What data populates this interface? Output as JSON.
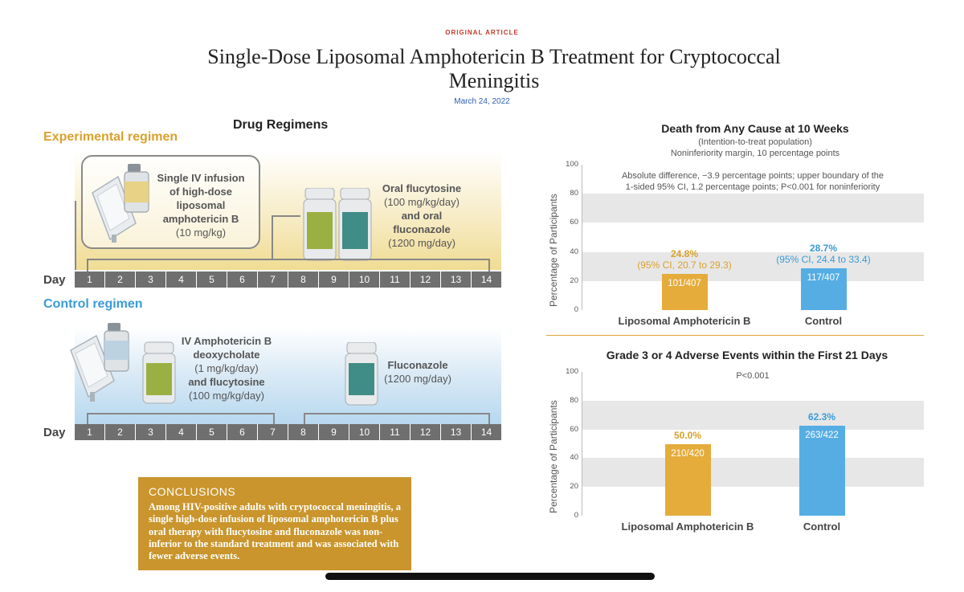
{
  "header": {
    "kicker": "ORIGINAL ARTICLE",
    "title": "Single-Dose Liposomal Amphotericin B Treatment for Cryptococcal Meningitis",
    "date": "March 24, 2022"
  },
  "regimens": {
    "heading": "Drug Regimens",
    "experimental": {
      "label": "Experimental regimen",
      "drug1": [
        "Single IV infusion",
        "of high-dose",
        "liposomal",
        "amphotericin B",
        "(10 mg/kg)"
      ],
      "drug2": [
        "Oral flucytosine",
        "(100 mg/kg/day)",
        "and oral",
        "fluconazole",
        "(1200 mg/day)"
      ]
    },
    "control": {
      "label": "Control regimen",
      "drug1": [
        "IV Amphotericin B",
        "deoxycholate",
        "(1 mg/kg/day)",
        "and flucytosine",
        "(100 mg/kg/day)"
      ],
      "drug2": [
        "Fluconazole",
        "(1200 mg/day)"
      ]
    },
    "day_label": "Day",
    "days": [
      "1",
      "2",
      "3",
      "4",
      "5",
      "6",
      "7",
      "8",
      "9",
      "10",
      "11",
      "12",
      "13",
      "14"
    ]
  },
  "conclusions": {
    "heading": "CONCLUSIONS",
    "text": "Among HIV-positive adults with cryptococcal meningitis, a single high-dose infusion of liposomal amphotericin B plus oral therapy with flucytosine and fluconazole was non-inferior to the standard treatment and was associated with fewer adverse events."
  },
  "chart_data": [
    {
      "type": "bar",
      "title": "Death from Any Cause at 10 Weeks",
      "subtitle": [
        "(Intention-to-treat population)",
        "Noninferiority margin, 10 percentage points"
      ],
      "annotation": [
        "Absolute difference, −3.9 percentage points; upper boundary of the",
        "1-sided 95% CI, 1.2 percentage points; P<0.001 for noninferiority"
      ],
      "ylabel": "Percentage of Participants",
      "ylim": [
        0,
        100
      ],
      "yticks": [
        "0",
        "20",
        "40",
        "60",
        "80",
        "100"
      ],
      "grid": "alternating bands",
      "categories": [
        "Liposomal Amphotericin B",
        "Control"
      ],
      "values": [
        24.8,
        28.7
      ],
      "value_labels": [
        "24.8%",
        "28.7%"
      ],
      "ci_labels": [
        "(95% CI, 20.7 to 29.3)",
        "(95% CI, 24.4 to 33.4)"
      ],
      "counts": [
        "101/407",
        "117/407"
      ],
      "colors": [
        "#e5ac3b",
        "#55ade4"
      ]
    },
    {
      "type": "bar",
      "title": "Grade 3 or 4 Adverse Events within the First 21 Days",
      "annotation": [
        "P<0.001"
      ],
      "ylabel": "Percentage of Participants",
      "ylim": [
        0,
        100
      ],
      "yticks": [
        "0",
        "20",
        "40",
        "60",
        "80",
        "100"
      ],
      "grid": "alternating bands",
      "categories": [
        "Liposomal Amphotericin B",
        "Control"
      ],
      "values": [
        50.0,
        62.3
      ],
      "value_labels": [
        "50.0%",
        "62.3%"
      ],
      "counts": [
        "210/420",
        "263/422"
      ],
      "colors": [
        "#e5ac3b",
        "#55ade4"
      ]
    }
  ],
  "colors": {
    "experimental": "#d9a12c",
    "control": "#3a9bd5",
    "conclusions_bg": "#c9952c",
    "kicker": "#c0392b"
  }
}
